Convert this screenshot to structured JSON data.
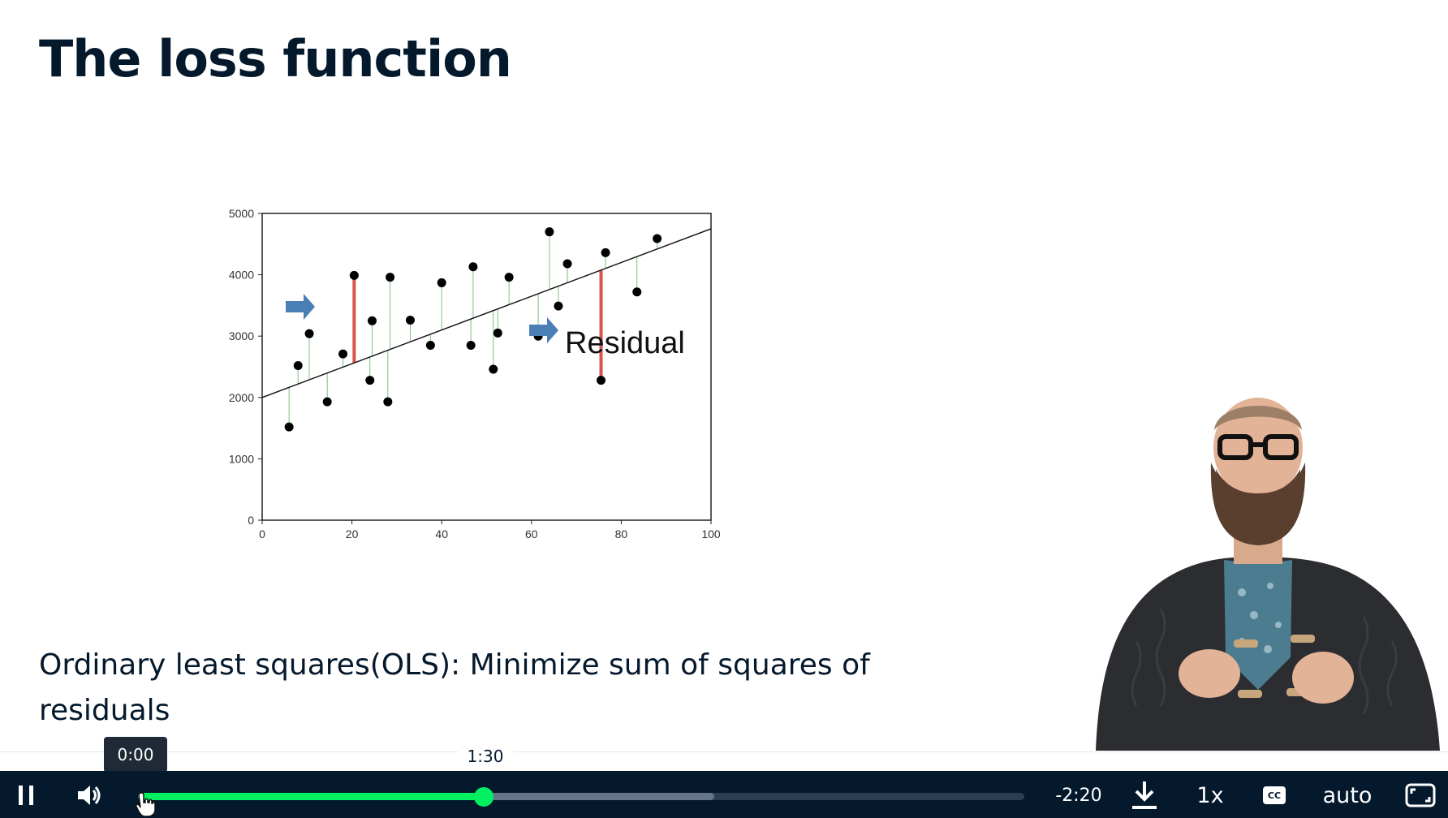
{
  "slide": {
    "title": "The loss function",
    "caption": "Ordinary least squares(OLS): Minimize sum of squares of residuals",
    "annotation": "Residual"
  },
  "chart_data": {
    "type": "scatter",
    "title": "",
    "xlabel": "",
    "ylabel": "",
    "xlim": [
      0,
      100
    ],
    "ylim": [
      0,
      5000
    ],
    "x_ticks": [
      "0",
      "20",
      "40",
      "60",
      "80",
      "100"
    ],
    "y_ticks": [
      "0",
      "1000",
      "2000",
      "3000",
      "4000",
      "5000"
    ],
    "fit_line": {
      "intercept": 2000,
      "slope": 27.5
    },
    "points": [
      {
        "x": 6,
        "y": 1520
      },
      {
        "x": 8,
        "y": 2520
      },
      {
        "x": 10.5,
        "y": 3040
      },
      {
        "x": 14.5,
        "y": 1930
      },
      {
        "x": 18,
        "y": 2710
      },
      {
        "x": 20.5,
        "y": 3990,
        "highlight": true
      },
      {
        "x": 24,
        "y": 2280
      },
      {
        "x": 24.5,
        "y": 3250
      },
      {
        "x": 28,
        "y": 1930
      },
      {
        "x": 28.5,
        "y": 3960
      },
      {
        "x": 33,
        "y": 3260
      },
      {
        "x": 37.5,
        "y": 2850
      },
      {
        "x": 40,
        "y": 3870
      },
      {
        "x": 46.5,
        "y": 2850
      },
      {
        "x": 47,
        "y": 4130
      },
      {
        "x": 51.5,
        "y": 2460
      },
      {
        "x": 52.5,
        "y": 3050
      },
      {
        "x": 55,
        "y": 3960
      },
      {
        "x": 61.5,
        "y": 3000
      },
      {
        "x": 64,
        "y": 4700
      },
      {
        "x": 66,
        "y": 3490
      },
      {
        "x": 68,
        "y": 4180
      },
      {
        "x": 75.5,
        "y": 2280,
        "highlight": true
      },
      {
        "x": 76.5,
        "y": 4360
      },
      {
        "x": 83.5,
        "y": 3720
      },
      {
        "x": 88,
        "y": 4590
      }
    ],
    "colors": {
      "points": "#000000",
      "fit_line": "#111111",
      "residual": "#7fbf7f",
      "highlight_residual": "#d9534f",
      "arrow": "#4a7fb5"
    }
  },
  "player": {
    "play_state": "pause-icon",
    "volume_icon": "volume-icon",
    "current_time_tooltip": "0:00",
    "hover_time_tooltip": "1:30",
    "remaining_time": "-2:20",
    "download_icon": "download-icon",
    "speed": "1x",
    "captions_icon": "cc-icon",
    "captions_label": "CC",
    "quality": "auto",
    "fullscreen_icon": "fullscreen-icon",
    "progress_fraction": 0.39,
    "buffered_fraction": 0.65
  },
  "theme": {
    "accent": "#03ef62",
    "bar": "#05192d",
    "text": "#05192d"
  }
}
